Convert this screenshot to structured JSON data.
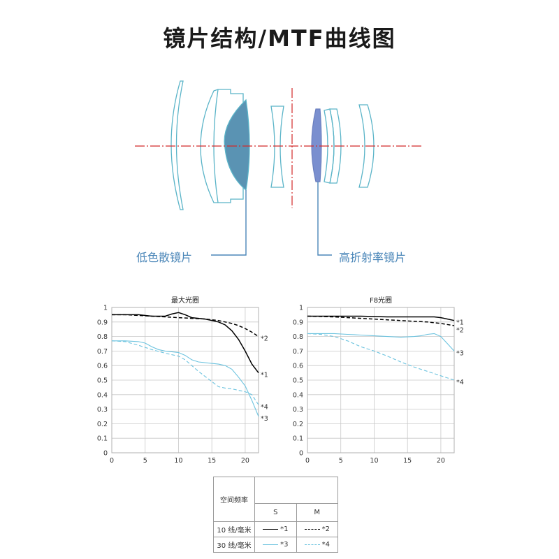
{
  "title": "镜片结构/MTF曲线图",
  "lens_labels": {
    "left": "低色散镜片",
    "right": "高折射率镜片"
  },
  "colors": {
    "lens_outline": "#5ab4c8",
    "ld_fill": "#5a93b3",
    "hr_fill": "#7a8fcf",
    "axis_line": "#d22a2a",
    "callout_line": "#4a86b8",
    "s_curve_10": "#000000",
    "m_curve_10": "#000000",
    "s_curve_30": "#6cc3df",
    "m_curve_30": "#6cc3df"
  },
  "chart_data": [
    {
      "type": "line",
      "title": "最大光圈",
      "xlim": [
        0,
        22
      ],
      "ylim": [
        0,
        1
      ],
      "x_ticks": [
        0,
        5,
        10,
        15,
        20
      ],
      "y_ticks": [
        0,
        0.1,
        0.2,
        0.3,
        0.4,
        0.5,
        0.6,
        0.7,
        0.8,
        0.9,
        1
      ],
      "y_tick_labels": [
        "0",
        "0.1",
        "0.2",
        "0.3",
        "0.4",
        "0.5",
        "0.6",
        "0.7",
        "0.8",
        "0.9",
        "1"
      ],
      "grid": true,
      "series": [
        {
          "name": "*1",
          "style": "solid",
          "color": "#000000",
          "x": [
            0,
            2,
            4,
            6,
            8,
            9,
            10,
            11,
            12,
            13,
            14,
            15,
            16,
            17,
            18,
            19,
            20,
            21,
            22
          ],
          "y": [
            0.95,
            0.95,
            0.95,
            0.94,
            0.94,
            0.955,
            0.965,
            0.95,
            0.93,
            0.925,
            0.92,
            0.91,
            0.9,
            0.88,
            0.84,
            0.78,
            0.7,
            0.61,
            0.55
          ]
        },
        {
          "name": "*2",
          "style": "dashed",
          "color": "#000000",
          "x": [
            0,
            2,
            4,
            6,
            8,
            10,
            12,
            14,
            16,
            17,
            18,
            19,
            20,
            21,
            22
          ],
          "y": [
            0.95,
            0.95,
            0.945,
            0.94,
            0.935,
            0.93,
            0.925,
            0.92,
            0.91,
            0.9,
            0.89,
            0.875,
            0.855,
            0.83,
            0.8
          ]
        },
        {
          "name": "*3",
          "style": "solid",
          "color": "#6cc3df",
          "x": [
            0,
            2,
            4,
            5,
            6,
            7,
            8,
            9,
            10,
            11,
            12,
            13,
            14,
            15,
            16,
            17,
            18,
            19,
            20,
            21,
            22
          ],
          "y": [
            0.77,
            0.77,
            0.765,
            0.755,
            0.73,
            0.71,
            0.7,
            0.695,
            0.69,
            0.67,
            0.64,
            0.625,
            0.62,
            0.615,
            0.61,
            0.6,
            0.575,
            0.52,
            0.46,
            0.36,
            0.25
          ]
        },
        {
          "name": "*4",
          "style": "dashed",
          "color": "#6cc3df",
          "x": [
            0,
            2,
            4,
            6,
            8,
            10,
            11,
            12,
            13,
            14,
            15,
            16,
            17,
            18,
            19,
            20,
            21,
            22
          ],
          "y": [
            0.77,
            0.765,
            0.74,
            0.71,
            0.685,
            0.665,
            0.64,
            0.6,
            0.56,
            0.525,
            0.49,
            0.455,
            0.445,
            0.44,
            0.43,
            0.42,
            0.4,
            0.33
          ]
        }
      ],
      "end_labels": [
        "*2",
        "*1",
        "*4",
        "*3"
      ]
    },
    {
      "type": "line",
      "title": "F8光圈",
      "xlim": [
        0,
        22
      ],
      "ylim": [
        0,
        1
      ],
      "x_ticks": [
        0,
        5,
        10,
        15,
        20
      ],
      "y_ticks": [
        0,
        0.1,
        0.2,
        0.3,
        0.4,
        0.5,
        0.6,
        0.7,
        0.8,
        0.9,
        1
      ],
      "y_tick_labels": [
        "0",
        "0.1",
        "0.2",
        "0.3",
        "0.4",
        "0.5",
        "0.6",
        "0.7",
        "0.8",
        "0.9",
        "1"
      ],
      "grid": true,
      "series": [
        {
          "name": "*1",
          "style": "solid",
          "color": "#000000",
          "x": [
            0,
            4,
            8,
            12,
            16,
            18,
            19,
            20,
            21,
            22
          ],
          "y": [
            0.94,
            0.94,
            0.94,
            0.935,
            0.935,
            0.935,
            0.935,
            0.93,
            0.92,
            0.91
          ]
        },
        {
          "name": "*2",
          "style": "dashed",
          "color": "#000000",
          "x": [
            0,
            4,
            8,
            12,
            16,
            18,
            20,
            22
          ],
          "y": [
            0.94,
            0.935,
            0.925,
            0.915,
            0.905,
            0.9,
            0.89,
            0.875
          ]
        },
        {
          "name": "*3",
          "style": "solid",
          "color": "#6cc3df",
          "x": [
            0,
            2,
            4,
            6,
            8,
            10,
            12,
            14,
            16,
            17,
            18,
            19,
            20,
            21,
            22
          ],
          "y": [
            0.82,
            0.82,
            0.82,
            0.815,
            0.81,
            0.805,
            0.8,
            0.795,
            0.8,
            0.805,
            0.815,
            0.82,
            0.8,
            0.75,
            0.7
          ]
        },
        {
          "name": "*4",
          "style": "dashed",
          "color": "#6cc3df",
          "x": [
            0,
            2,
            4,
            6,
            8,
            10,
            12,
            14,
            16,
            18,
            20,
            22
          ],
          "y": [
            0.82,
            0.815,
            0.8,
            0.77,
            0.73,
            0.7,
            0.665,
            0.625,
            0.59,
            0.56,
            0.53,
            0.5
          ]
        }
      ],
      "end_labels": [
        "*1",
        "*2",
        "*3",
        "*4"
      ]
    }
  ],
  "legend": {
    "header": "空间频率",
    "col_s": "S",
    "col_m": "M",
    "rows": [
      {
        "label": "10 线/毫米",
        "s": "*1",
        "m": "*2"
      },
      {
        "label": "30 线/毫米",
        "s": "*3",
        "m": "*4"
      }
    ]
  }
}
